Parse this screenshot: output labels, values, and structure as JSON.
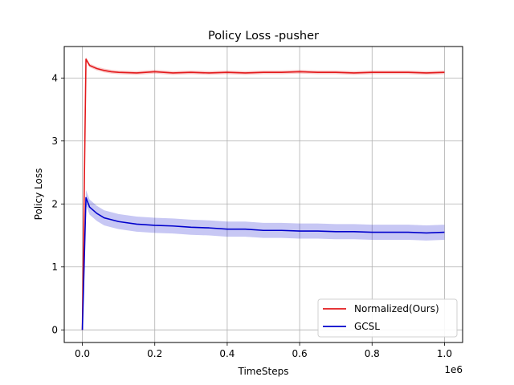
{
  "chart_data": {
    "type": "line",
    "title": "Policy Loss -pusher",
    "xlabel": "TimeSteps",
    "ylabel": "Policy Loss",
    "x_offset_label": "1e6",
    "xlim": [
      -0.05,
      1.05
    ],
    "ylim": [
      -0.2,
      4.5
    ],
    "x_ticks": [
      0.0,
      0.2,
      0.4,
      0.6,
      0.8,
      1.0
    ],
    "x_tick_labels": [
      "0.0",
      "0.2",
      "0.4",
      "0.6",
      "0.8",
      "1.0"
    ],
    "y_ticks": [
      0,
      1,
      2,
      3,
      4
    ],
    "y_tick_labels": [
      "0",
      "1",
      "2",
      "3",
      "4"
    ],
    "grid": true,
    "legend_position": "lower-right",
    "x": [
      0.0,
      0.01,
      0.02,
      0.04,
      0.06,
      0.08,
      0.1,
      0.15,
      0.2,
      0.25,
      0.3,
      0.35,
      0.4,
      0.45,
      0.5,
      0.55,
      0.6,
      0.65,
      0.7,
      0.75,
      0.8,
      0.85,
      0.9,
      0.95,
      1.0
    ],
    "series": [
      {
        "name": "Normalized(Ours)",
        "color": "#e31a1c",
        "values": [
          0.0,
          4.3,
          4.2,
          4.15,
          4.12,
          4.1,
          4.09,
          4.08,
          4.1,
          4.08,
          4.09,
          4.08,
          4.09,
          4.08,
          4.09,
          4.09,
          4.1,
          4.09,
          4.09,
          4.08,
          4.09,
          4.09,
          4.09,
          4.08,
          4.09
        ],
        "band": 0.03
      },
      {
        "name": "GCSL",
        "color": "#0000cc",
        "values": [
          0.0,
          2.1,
          1.95,
          1.85,
          1.78,
          1.75,
          1.72,
          1.68,
          1.66,
          1.65,
          1.63,
          1.62,
          1.6,
          1.6,
          1.58,
          1.58,
          1.57,
          1.57,
          1.56,
          1.56,
          1.55,
          1.55,
          1.55,
          1.54,
          1.55
        ],
        "band": 0.12
      }
    ]
  }
}
